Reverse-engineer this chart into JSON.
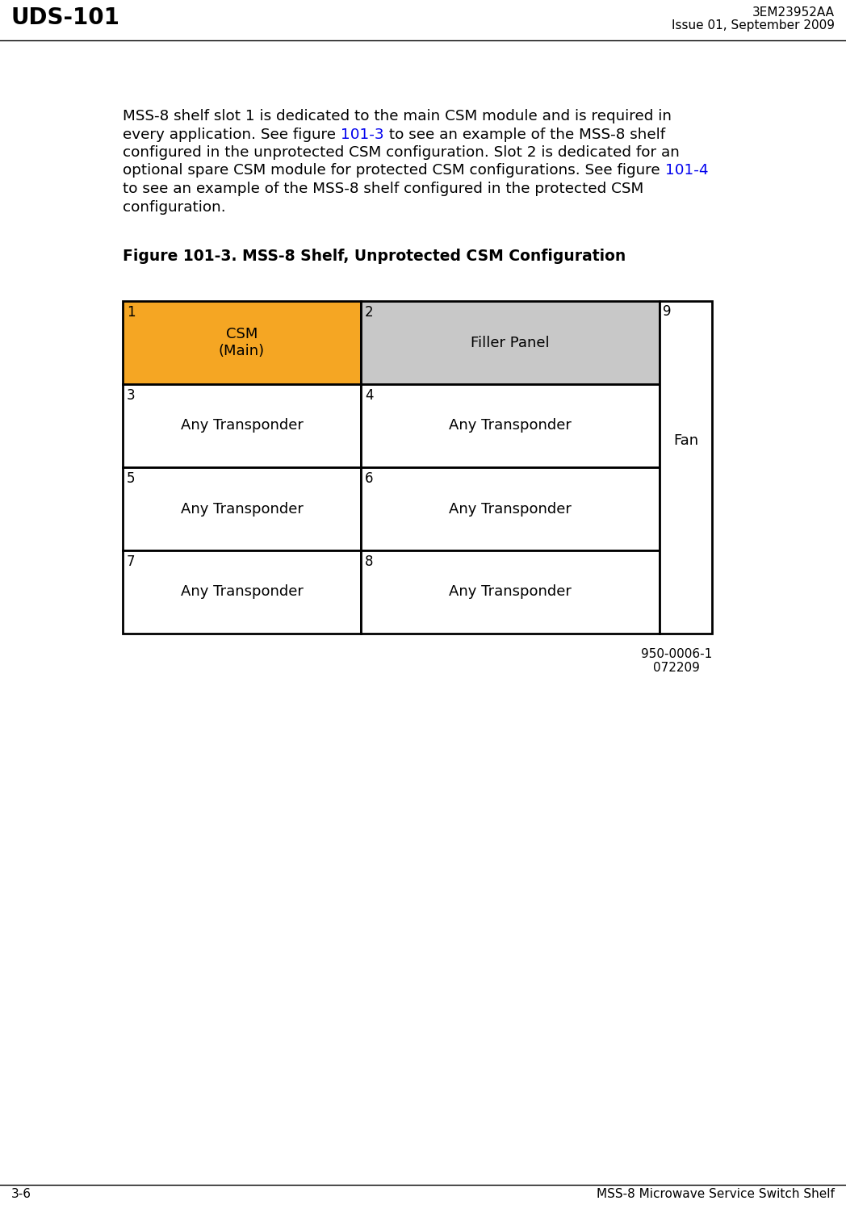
{
  "header_left": "UDS-101",
  "header_right_line1": "3EM23952AA",
  "header_right_line2": "Issue 01, September 2009",
  "footer_left": "3-6",
  "footer_right": "MSS-8 Microwave Service Switch Shelf",
  "figure_title": "Figure 101-3. MSS-8 Shelf, Unprotected CSM Configuration",
  "caption": "950-0006-1\n072209",
  "csm_color": "#F5A623",
  "filler_color": "#C8C8C8",
  "white_color": "#FFFFFF",
  "border_color": "#000000",
  "background_color": "#FFFFFF",
  "cells": [
    {
      "slot": "1",
      "label": "CSM\n(Main)",
      "color": "#F5A623",
      "col": 0,
      "row": 0
    },
    {
      "slot": "2",
      "label": "Filler Panel",
      "color": "#C8C8C8",
      "col": 1,
      "row": 0
    },
    {
      "slot": "3",
      "label": "Any Transponder",
      "color": "#FFFFFF",
      "col": 0,
      "row": 1
    },
    {
      "slot": "4",
      "label": "Any Transponder",
      "color": "#FFFFFF",
      "col": 1,
      "row": 1
    },
    {
      "slot": "5",
      "label": "Any Transponder",
      "color": "#FFFFFF",
      "col": 0,
      "row": 2
    },
    {
      "slot": "6",
      "label": "Any Transponder",
      "color": "#FFFFFF",
      "col": 1,
      "row": 2
    },
    {
      "slot": "7",
      "label": "Any Transponder",
      "color": "#FFFFFF",
      "col": 0,
      "row": 3
    },
    {
      "slot": "8",
      "label": "Any Transponder",
      "color": "#FFFFFF",
      "col": 1,
      "row": 3
    }
  ],
  "fan_slot": "9",
  "fan_label": "Fan",
  "body_lines": [
    [
      [
        "MSS-8 shelf slot 1 is dedicated to the main CSM module and is required in",
        "#000000"
      ]
    ],
    [
      [
        "every application. See figure ",
        "#000000"
      ],
      [
        "101-3",
        "#0000EE"
      ],
      [
        " to see an example of the MSS-8 shelf",
        "#000000"
      ]
    ],
    [
      [
        "configured in the unprotected CSM configuration. Slot 2 is dedicated for an",
        "#000000"
      ]
    ],
    [
      [
        "optional spare CSM module for protected CSM configurations. See figure ",
        "#000000"
      ],
      [
        "101-4",
        "#0000EE"
      ]
    ],
    [
      [
        "to see an example of the MSS-8 shelf configured in the protected CSM",
        "#000000"
      ]
    ],
    [
      [
        "configuration.",
        "#000000"
      ]
    ]
  ]
}
